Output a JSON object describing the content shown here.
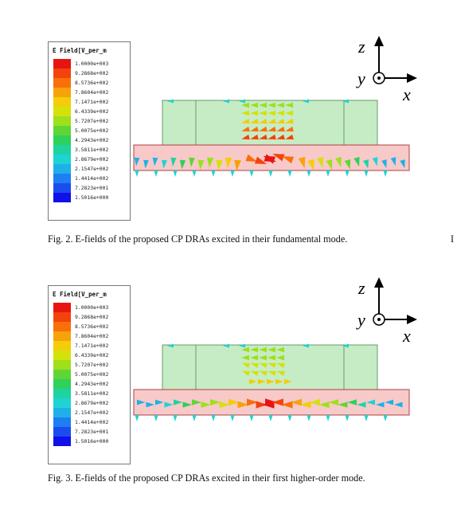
{
  "figures": [
    {
      "id": "fig2",
      "legend": {
        "title": "E Field[V_per_m",
        "values": [
          "1.0000e+003",
          "9.2868e+002",
          "8.5736e+002",
          "7.8604e+002",
          "7.1471e+002",
          "6.4339e+002",
          "5.7207e+002",
          "5.0075e+002",
          "4.2943e+002",
          "3.5811e+002",
          "2.8679e+002",
          "2.1547e+002",
          "1.4414e+002",
          "7.2823e+001",
          "1.5016e+000"
        ],
        "colors": [
          "#e8140f",
          "#f4420c",
          "#f8700a",
          "#f7a208",
          "#f3cd0a",
          "#d3e20b",
          "#9ee01a",
          "#5fd636",
          "#2ed15a",
          "#1fd3a0",
          "#1fd3d3",
          "#1fb0e8",
          "#1d7ff0",
          "#1a4cf0",
          "#1010e8"
        ]
      },
      "axes": {
        "z": "z",
        "y": "y",
        "x": "x"
      },
      "caption": "Fig. 2.   E-fields of the proposed CP DRAs excited in their fundamental mode.",
      "cut_letter": "I"
    },
    {
      "id": "fig3",
      "legend": {
        "title": "E Field[V_per_m",
        "values": [
          "1.0000e+003",
          "9.2868e+002",
          "8.5736e+002",
          "7.8604e+002",
          "7.1471e+002",
          "6.4339e+002",
          "5.7207e+002",
          "5.0075e+002",
          "4.2943e+002",
          "3.5811e+002",
          "2.8679e+002",
          "2.1547e+002",
          "1.4414e+002",
          "7.2823e+001",
          "1.5016e+000"
        ],
        "colors": [
          "#e8140f",
          "#f4420c",
          "#f8700a",
          "#f7a208",
          "#f3cd0a",
          "#d3e20b",
          "#9ee01a",
          "#5fd636",
          "#2ed15a",
          "#1fd3a0",
          "#1fd3d3",
          "#1fb0e8",
          "#1d7ff0",
          "#1a4cf0",
          "#1010e8"
        ]
      },
      "axes": {
        "z": "z",
        "y": "y",
        "x": "x"
      },
      "caption": "Fig. 3.   E-fields of the proposed CP DRAs excited in their first higher-order mode."
    }
  ],
  "colors": {
    "dra_fill": "#c6ecc6",
    "dra_stroke": "#6a9a6a",
    "substrate_fill": "#f7c9c9",
    "substrate_stroke": "#b04040"
  }
}
